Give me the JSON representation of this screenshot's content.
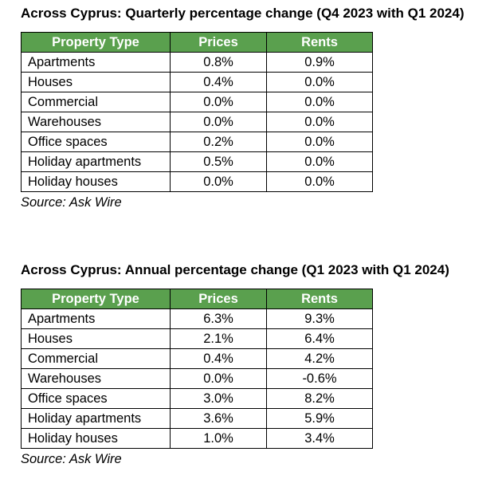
{
  "tables": [
    {
      "title": "Across Cyprus: Quarterly percentage change (Q4 2023 with Q1 2024)",
      "headers": [
        "Property Type",
        "Prices",
        "Rents"
      ],
      "rows": [
        [
          "Apartments",
          "0.8%",
          "0.9%"
        ],
        [
          "Houses",
          "0.4%",
          "0.0%"
        ],
        [
          "Commercial",
          "0.0%",
          "0.0%"
        ],
        [
          "Warehouses",
          "0.0%",
          "0.0%"
        ],
        [
          "Office spaces",
          "0.2%",
          "0.0%"
        ],
        [
          "Holiday apartments",
          "0.5%",
          "0.0%"
        ],
        [
          "Holiday houses",
          "0.0%",
          "0.0%"
        ]
      ],
      "source": "Source: Ask Wire"
    },
    {
      "title": "Across Cyprus: Annual percentage change (Q1 2023 with Q1 2024)",
      "headers": [
        "Property Type",
        "Prices",
        "Rents"
      ],
      "rows": [
        [
          "Apartments",
          "6.3%",
          "9.3%"
        ],
        [
          "Houses",
          "2.1%",
          "6.4%"
        ],
        [
          "Commercial",
          "0.4%",
          "4.2%"
        ],
        [
          "Warehouses",
          "0.0%",
          "-0.6%"
        ],
        [
          "Office spaces",
          "3.0%",
          "8.2%"
        ],
        [
          "Holiday apartments",
          "3.6%",
          "5.9%"
        ],
        [
          "Holiday houses",
          "1.0%",
          "3.4%"
        ]
      ],
      "source": "Source: Ask Wire"
    }
  ],
  "colors": {
    "header_bg": "#5aa04e",
    "header_text": "#ffffff",
    "border": "#000000"
  }
}
